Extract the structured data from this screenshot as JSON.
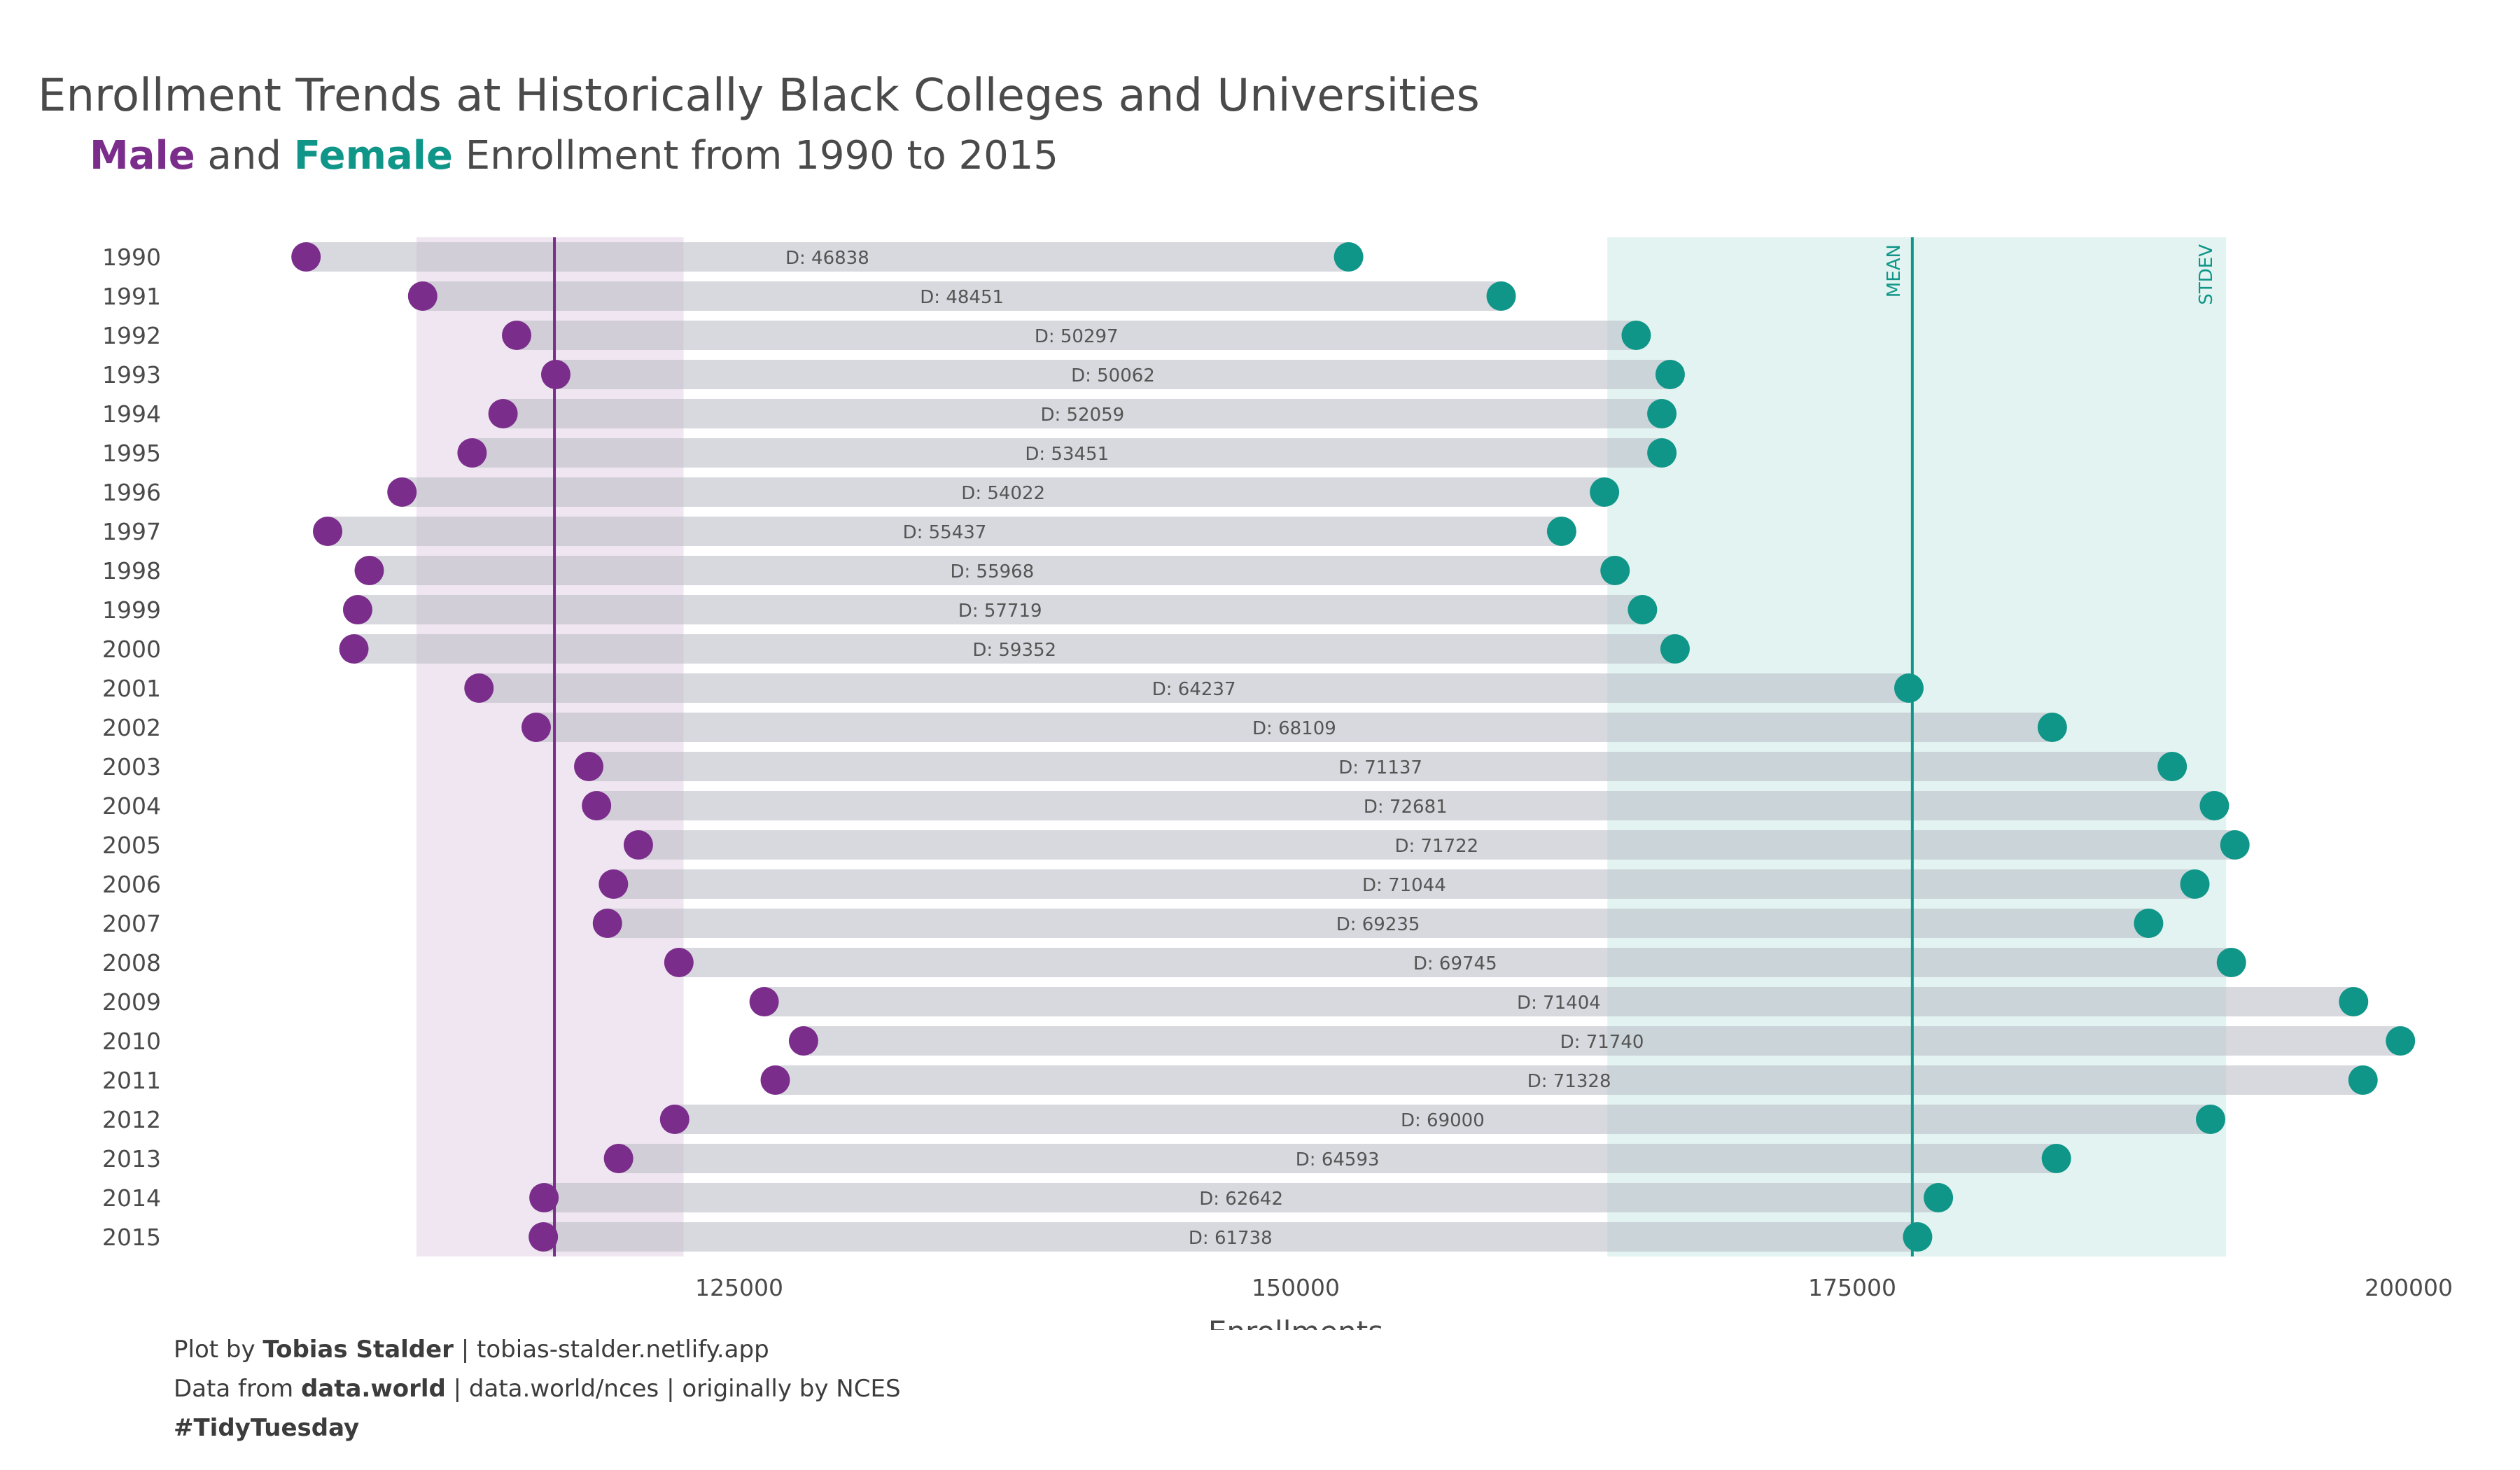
{
  "title": "Enrollment Trends at Historically Black Colleges and Universities",
  "subtitle": {
    "male_word": "Male",
    "and_word": "and",
    "female_word": "Female",
    "rest": "Enrollment from 1990 to 2015"
  },
  "colors": {
    "male": "#7b2d8b",
    "female": "#0f9688",
    "bar": "#d6d7dc",
    "male_band": "#efe6f1",
    "female_band": "#e3f3f1"
  },
  "caption": {
    "line1_prefix": "Plot by",
    "line1_bold": "Tobias Stalder",
    "line1_rest": "| tobias-stalder.netlify.app",
    "line2_prefix": "Data from",
    "line2_bold": "data.world",
    "line2_rest": "| data.world/nces | originally by NCES",
    "line3": "#TidyTuesday"
  },
  "chart_data": {
    "type": "dumbbell",
    "xlabel": "Enrollments",
    "xlim": [
      100000,
      200000
    ],
    "xticks": [
      125000,
      150000,
      175000,
      200000
    ],
    "diff_prefix": "D:",
    "categories": [
      "1990",
      "1991",
      "1992",
      "1993",
      "1994",
      "1995",
      "1996",
      "1997",
      "1998",
      "1999",
      "2000",
      "2001",
      "2002",
      "2003",
      "2004",
      "2005",
      "2006",
      "2007",
      "2008",
      "2009",
      "2010",
      "2011",
      "2012",
      "2013",
      "2014",
      "2015"
    ],
    "series": [
      {
        "name": "Male",
        "values": [
          105540,
          110780,
          115000,
          116760,
          114390,
          113000,
          109850,
          106510,
          108380,
          107860,
          107690,
          113310,
          115880,
          118240,
          118590,
          120470,
          119350,
          119080,
          122290,
          126120,
          127890,
          126620,
          122100,
          119580,
          116230,
          116200
        ]
      },
      {
        "name": "Female",
        "values": [
          152378,
          159231,
          165297,
          166822,
          166449,
          166451,
          163872,
          161947,
          164348,
          165579,
          167042,
          177547,
          183989,
          189377,
          191271,
          192192,
          190394,
          188315,
          192035,
          197524,
          199630,
          197948,
          191100,
          184173,
          178872,
          177938
        ]
      }
    ],
    "differences": [
      46838,
      48451,
      50297,
      50062,
      52059,
      53451,
      54022,
      55437,
      55968,
      57719,
      59352,
      64237,
      68109,
      71137,
      72681,
      71722,
      71044,
      69235,
      69745,
      71404,
      71740,
      71328,
      69000,
      64593,
      62642,
      61738
    ],
    "reference_lines": [
      {
        "series": "Male",
        "value": 116700
      },
      {
        "series": "Female",
        "label": "MEAN",
        "value": 177700
      }
    ],
    "bands": [
      {
        "series": "Male",
        "range": [
          110500,
          122500
        ]
      },
      {
        "series": "Female",
        "range": [
          164000,
          191800
        ],
        "label": "STDEV"
      }
    ]
  }
}
